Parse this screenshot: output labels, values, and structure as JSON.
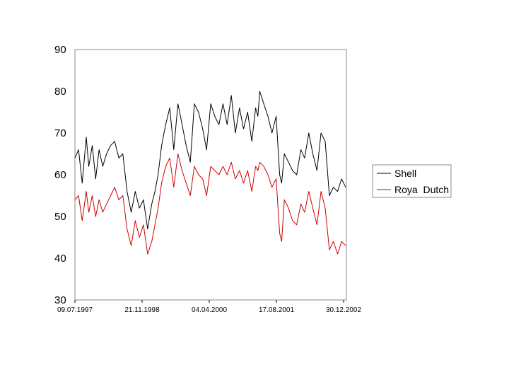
{
  "chart_data": {
    "type": "line",
    "title": "",
    "xlabel": "",
    "ylabel": "",
    "ylim": [
      30,
      90
    ],
    "yticks": [
      90,
      80,
      70,
      60,
      50,
      40,
      30
    ],
    "xticks": [
      "09.07.1997",
      "21.11.1998",
      "04.04.2000",
      "17.08.2001",
      "30.12.2002"
    ],
    "xlim": [
      "1997-07-09",
      "2003-01-20"
    ],
    "grid": false,
    "legend_position": "right",
    "series": [
      {
        "name": "Shell",
        "color": "#000000",
        "x": [
          "1997-07-09",
          "1997-08-05",
          "1997-09-01",
          "1997-10-01",
          "1997-10-20",
          "1997-11-15",
          "1997-12-10",
          "1998-01-05",
          "1998-02-01",
          "1998-03-01",
          "1998-04-01",
          "1998-05-01",
          "1998-06-01",
          "1998-07-01",
          "1998-08-01",
          "1998-09-01",
          "1998-10-01",
          "1998-11-01",
          "1998-12-01",
          "1999-01-01",
          "1999-02-01",
          "1999-02-25",
          "1999-03-20",
          "1999-04-15",
          "1999-05-15",
          "1999-06-15",
          "1999-07-15",
          "1999-08-15",
          "1999-09-15",
          "1999-10-15",
          "1999-11-15",
          "1999-12-15",
          "2000-01-15",
          "2000-02-15",
          "2000-03-15",
          "2000-04-15",
          "2000-05-15",
          "2000-06-15",
          "2000-07-15",
          "2000-08-15",
          "2000-09-15",
          "2000-10-15",
          "2000-11-15",
          "2000-12-15",
          "2001-01-15",
          "2001-02-15",
          "2001-03-15",
          "2001-04-01",
          "2001-04-15",
          "2001-05-15",
          "2001-06-15",
          "2001-07-15",
          "2001-08-15",
          "2001-09-10",
          "2001-09-25",
          "2001-10-15",
          "2001-11-15",
          "2001-12-15",
          "2002-01-15",
          "2002-02-15",
          "2002-03-15",
          "2002-04-15",
          "2002-05-15",
          "2002-06-15",
          "2002-07-15",
          "2002-08-15",
          "2002-09-15",
          "2002-10-15",
          "2002-11-15",
          "2002-12-15",
          "2003-01-15"
        ],
        "y": [
          64,
          66,
          58,
          69,
          62,
          67,
          59,
          66,
          62,
          65,
          67,
          68,
          64,
          65,
          56,
          51,
          56,
          52,
          54,
          47,
          53,
          56,
          60,
          67,
          72,
          76,
          66,
          77,
          72,
          67,
          63,
          77,
          75,
          71,
          66,
          77,
          74,
          72,
          77,
          72,
          79,
          70,
          76,
          71,
          75,
          68,
          76,
          74,
          80,
          77,
          74,
          70,
          74,
          60,
          58,
          65,
          63,
          61,
          60,
          66,
          64,
          70,
          65,
          61,
          70,
          68,
          55,
          57,
          56,
          59,
          57
        ]
      },
      {
        "name": "Roya  Dutch",
        "color": "#cc0000",
        "x": [
          "1997-07-09",
          "1997-08-05",
          "1997-09-01",
          "1997-10-01",
          "1997-10-20",
          "1997-11-15",
          "1997-12-10",
          "1998-01-05",
          "1998-02-01",
          "1998-03-01",
          "1998-04-01",
          "1998-05-01",
          "1998-06-01",
          "1998-07-01",
          "1998-08-01",
          "1998-09-01",
          "1998-10-01",
          "1998-11-01",
          "1998-12-01",
          "1999-01-01",
          "1999-02-01",
          "1999-02-25",
          "1999-03-20",
          "1999-04-15",
          "1999-05-15",
          "1999-06-15",
          "1999-07-15",
          "1999-08-15",
          "1999-09-15",
          "1999-10-15",
          "1999-11-15",
          "1999-12-15",
          "2000-01-15",
          "2000-02-15",
          "2000-03-15",
          "2000-04-15",
          "2000-05-15",
          "2000-06-15",
          "2000-07-15",
          "2000-08-15",
          "2000-09-15",
          "2000-10-15",
          "2000-11-15",
          "2000-12-15",
          "2001-01-15",
          "2001-02-15",
          "2001-03-15",
          "2001-04-01",
          "2001-04-15",
          "2001-05-15",
          "2001-06-15",
          "2001-07-15",
          "2001-08-15",
          "2001-09-10",
          "2001-09-25",
          "2001-10-15",
          "2001-11-15",
          "2001-12-15",
          "2002-01-15",
          "2002-02-15",
          "2002-03-15",
          "2002-04-15",
          "2002-05-15",
          "2002-06-15",
          "2002-07-15",
          "2002-08-15",
          "2002-09-15",
          "2002-10-15",
          "2002-11-15",
          "2002-12-15",
          "2003-01-15"
        ],
        "y": [
          54,
          55,
          49,
          56,
          51,
          55,
          50,
          54,
          51,
          53,
          55,
          57,
          54,
          55,
          47,
          43,
          49,
          45,
          48,
          41,
          44,
          48,
          52,
          58,
          62,
          64,
          57,
          65,
          61,
          58,
          55,
          62,
          60,
          59,
          55,
          62,
          61,
          60,
          62,
          60,
          63,
          59,
          61,
          58,
          61,
          56,
          62,
          61,
          63,
          62,
          60,
          57,
          59,
          46,
          44,
          54,
          52,
          49,
          48,
          53,
          51,
          56,
          52,
          48,
          56,
          52,
          42,
          44,
          41,
          44,
          43
        ]
      }
    ]
  }
}
